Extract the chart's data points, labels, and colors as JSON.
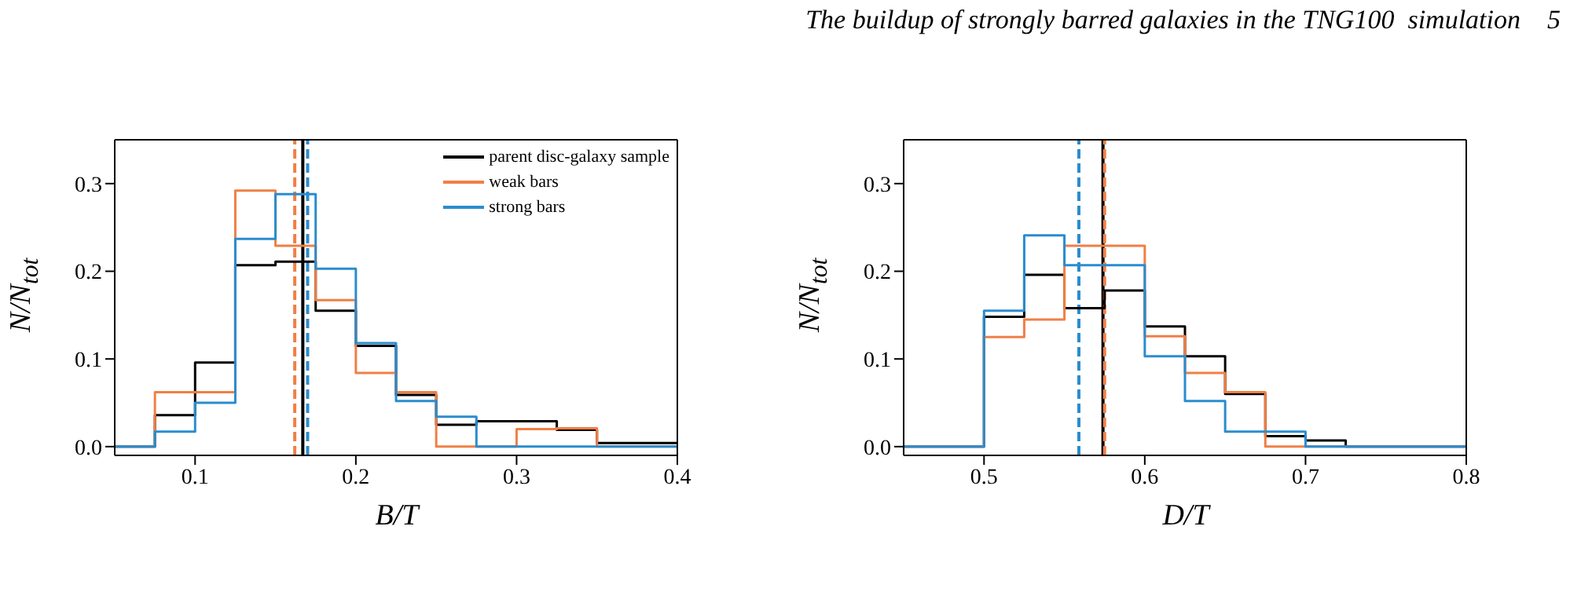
{
  "chart_data": [
    {
      "type": "histogram",
      "annotations": [
        "The buildup of strongly barred galaxies in the TNG100  simulation    5"
      ],
      "xlabel": "B/T",
      "ylabel": "N/N$_{tot}$",
      "bins": [
        0.05,
        0.075,
        0.1,
        0.125,
        0.15,
        0.175,
        0.2,
        0.225,
        0.25,
        0.275,
        0.3,
        0.325,
        0.35,
        0.375,
        0.4
      ],
      "series": [
        {
          "name": "parent disc-galaxy sample",
          "color": "#000000",
          "values": [
            0,
            0.036,
            0.096,
            0.207,
            0.211,
            0.155,
            0.115,
            0.059,
            0.025,
            0.029,
            0.029,
            0.019,
            0.004,
            0.004
          ]
        },
        {
          "name": "weak bars",
          "color": "#f07f45",
          "values": [
            0,
            0.062,
            0.062,
            0.292,
            0.229,
            0.167,
            0.084,
            0.062,
            0,
            0,
            0.02,
            0.021,
            0,
            0
          ]
        },
        {
          "name": "strong bars",
          "color": "#2a8ccf",
          "values": [
            0,
            0.017,
            0.05,
            0.237,
            0.288,
            0.203,
            0.118,
            0.052,
            0.034,
            0,
            0,
            0,
            0,
            0
          ]
        }
      ],
      "ref_lines": [
        {
          "axis": "x",
          "value": 0.167,
          "color": "#000000",
          "line_style": "solid"
        },
        {
          "axis": "x",
          "value": 0.162,
          "color": "#f07f45",
          "line_style": "dashed"
        },
        {
          "axis": "x",
          "value": 0.17,
          "color": "#2a8ccf",
          "line_style": "dashed"
        }
      ],
      "xlim": [
        0.05,
        0.4
      ],
      "xticks": [
        0.1,
        0.2,
        0.3,
        0.4
      ],
      "ylim": [
        -0.01,
        0.35
      ],
      "yticks": [
        {
          "value": 0,
          "label": "0.0"
        },
        0.1,
        0.2,
        0.3
      ],
      "legend": "top right"
    },
    {
      "type": "histogram",
      "xlabel": "D/T",
      "ylabel": "N/N$_{tot}$",
      "bins": [
        0.45,
        0.475,
        0.5,
        0.525,
        0.55,
        0.575,
        0.6,
        0.625,
        0.65,
        0.675,
        0.7,
        0.725,
        0.75,
        0.775,
        0.8
      ],
      "series": [
        {
          "color": "#000000",
          "values": [
            0,
            0,
            0.148,
            0.196,
            0.158,
            0.178,
            0.137,
            0.103,
            0.06,
            0.012,
            0.007,
            0,
            0,
            0
          ]
        },
        {
          "color": "#f07f45",
          "values": [
            0,
            0,
            0.125,
            0.145,
            0.229,
            0.229,
            0.126,
            0.084,
            0.062,
            0,
            0,
            0,
            0,
            0
          ]
        },
        {
          "color": "#2a8ccf",
          "values": [
            0,
            0,
            0.155,
            0.241,
            0.207,
            0.207,
            0.103,
            0.052,
            0.017,
            0.017,
            0,
            0,
            0,
            0
          ]
        }
      ],
      "ref_lines": [
        {
          "axis": "x",
          "value": 0.574,
          "color": "#000000",
          "line_style": "solid"
        },
        {
          "axis": "x",
          "value": 0.575,
          "color": "#f07f45",
          "line_style": "dashed"
        },
        {
          "axis": "x",
          "value": 0.559,
          "color": "#2a8ccf",
          "line_style": "dashed"
        }
      ],
      "xlim": [
        0.45,
        0.8
      ],
      "xticks": [
        0.5,
        0.6,
        0.7,
        0.8
      ],
      "ylim": [
        -0.01,
        0.35
      ],
      "yticks": [
        {
          "value": 0,
          "label": "0.0"
        },
        0.1,
        0.2,
        0.3
      ],
      "legend": false
    }
  ]
}
